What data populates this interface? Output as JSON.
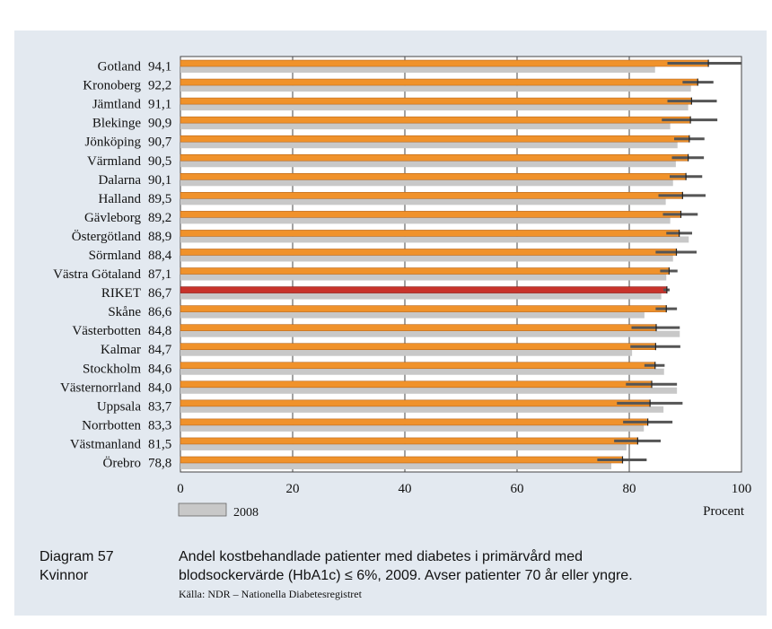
{
  "colors": {
    "panel_bg": "#e3e9f0",
    "bar_2009": "#f0922b",
    "bar_riket": "#c8332b",
    "bar_2008": "#c8c8c8",
    "error_bar": "#555555"
  },
  "chart_data": {
    "type": "bar",
    "orientation": "horizontal",
    "xlabel": "Procent",
    "xlim": [
      0,
      100
    ],
    "xticks": [
      0,
      20,
      40,
      60,
      80,
      100
    ],
    "legend": {
      "label": "2008",
      "placement": "bottom-left"
    },
    "highlight_category": "RIKET",
    "series": [
      {
        "name": "2009",
        "categories": [
          "Gotland",
          "Kronoberg",
          "Jämtland",
          "Blekinge",
          "Jönköping",
          "Värmland",
          "Dalarna",
          "Halland",
          "Gävleborg",
          "Östergötland",
          "Sörmland",
          "Västra Götaland",
          "RIKET",
          "Skåne",
          "Västerbotten",
          "Kalmar",
          "Stockholm",
          "Västernorrland",
          "Uppsala",
          "Norrbotten",
          "Västmanland",
          "Örebro"
        ],
        "values": [
          94.1,
          92.2,
          91.1,
          90.9,
          90.7,
          90.5,
          90.1,
          89.5,
          89.2,
          88.9,
          88.4,
          87.1,
          86.7,
          86.6,
          84.8,
          84.7,
          84.6,
          84.0,
          83.7,
          83.3,
          81.5,
          78.8
        ],
        "value_labels": [
          "94,1",
          "92,2",
          "91,1",
          "90,9",
          "90,7",
          "90,5",
          "90,1",
          "89,5",
          "89,2",
          "88,9",
          "88,4",
          "87,1",
          "86,7",
          "86,6",
          "84,8",
          "84,7",
          "84,6",
          "84,0",
          "83,7",
          "83,3",
          "81,5",
          "78,8"
        ],
        "ci_low": [
          86.8,
          89.5,
          86.8,
          85.8,
          88.0,
          87.6,
          87.2,
          85.2,
          86.0,
          86.6,
          84.7,
          85.5,
          86.1,
          84.7,
          80.4,
          80.2,
          82.7,
          79.4,
          77.8,
          78.9,
          77.3,
          74.3
        ],
        "ci_high": [
          100.0,
          95.0,
          95.6,
          95.7,
          93.4,
          93.3,
          93.0,
          93.6,
          92.2,
          91.2,
          92.0,
          88.6,
          87.2,
          88.5,
          89.0,
          89.1,
          86.3,
          88.5,
          89.5,
          87.7,
          85.6,
          83.1
        ]
      },
      {
        "name": "2008",
        "values": [
          84.6,
          91.0,
          90.5,
          87.3,
          88.6,
          88.3,
          87.8,
          86.5,
          87.3,
          90.6,
          87.8,
          86.6,
          85.7,
          82.7,
          89.0,
          80.5,
          86.2,
          88.5,
          86.1,
          82.6,
          79.5,
          76.8
        ]
      }
    ]
  },
  "caption": {
    "diagram_number": "Diagram 57",
    "subgroup": "Kvinnor",
    "text_line1": "Andel kostbehandlade patienter med diabetes i primärvård med",
    "text_line2": "blodsockervärde (HbA1c) ≤ 6%, 2009. Avser patienter 70 år eller yngre.",
    "source": "Källa: NDR – Nationella Diabetesregistret"
  }
}
